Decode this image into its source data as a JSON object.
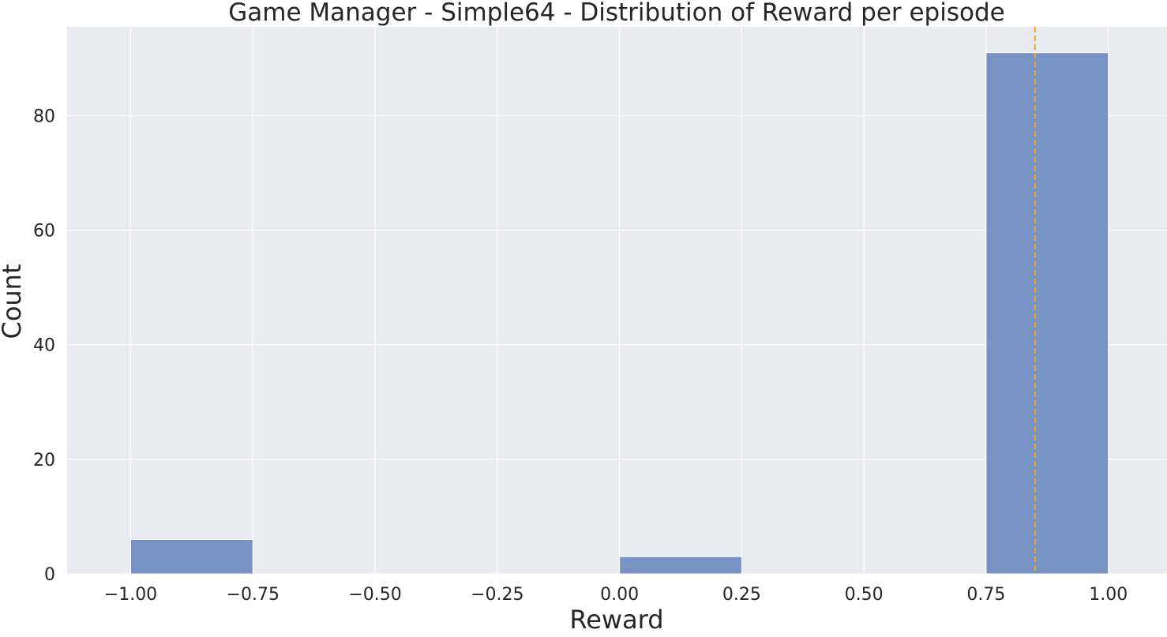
{
  "chart_data": {
    "type": "bar",
    "subtype": "histogram",
    "title": "Game Manager - Simple64 - Distribution of Reward per episode",
    "xlabel": "Reward",
    "ylabel": "Count",
    "xlim": [
      -1.13,
      1.12
    ],
    "ylim": [
      0,
      95.5
    ],
    "xticks": [
      -1.0,
      -0.75,
      -0.5,
      -0.25,
      0.0,
      0.25,
      0.5,
      0.75,
      1.0
    ],
    "xtick_labels": [
      "−1.00",
      "−0.75",
      "−0.50",
      "−0.25",
      "0.00",
      "0.25",
      "0.50",
      "0.75",
      "1.00"
    ],
    "yticks": [
      0,
      20,
      40,
      60,
      80
    ],
    "ytick_labels": [
      "0",
      "20",
      "40",
      "60",
      "80"
    ],
    "grid": true,
    "bins": [
      {
        "x0": -1.0,
        "x1": -0.75,
        "count": 6
      },
      {
        "x0": -0.75,
        "x1": -0.5,
        "count": 0
      },
      {
        "x0": -0.5,
        "x1": -0.25,
        "count": 0
      },
      {
        "x0": -0.25,
        "x1": 0.0,
        "count": 0
      },
      {
        "x0": 0.0,
        "x1": 0.25,
        "count": 3
      },
      {
        "x0": 0.25,
        "x1": 0.5,
        "count": 0
      },
      {
        "x0": 0.5,
        "x1": 0.75,
        "count": 0
      },
      {
        "x0": 0.75,
        "x1": 1.0,
        "count": 91
      }
    ],
    "reference_line": {
      "x": 0.85,
      "style": "dashed"
    },
    "colors": {
      "background": "#eaeaf2",
      "grid": "#ffffff",
      "bar": "#6b8bbf",
      "bar_edge": "#ffffff",
      "reference_line": "#f5a623",
      "text": "#262626"
    }
  }
}
